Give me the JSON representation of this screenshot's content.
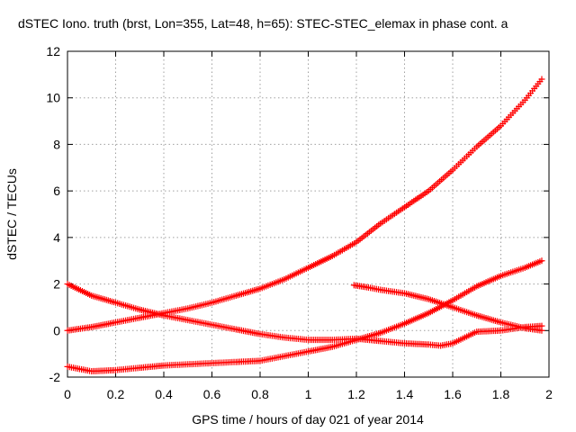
{
  "chart_data": {
    "type": "scatter",
    "title": "dSTEC Iono. truth (brst, Lon=355, Lat=48, h=65): STEC-STEC_elemax in phase cont. a",
    "xlabel": "GPS time / hours of day 021 of year 2014",
    "ylabel": "dSTEC  / TECUs",
    "xlim": [
      0,
      2
    ],
    "ylim": [
      -2,
      12
    ],
    "x_ticks": [
      "0",
      "0.2",
      "0.4",
      "0.6",
      "0.8",
      "1",
      "1.2",
      "1.4",
      "1.6",
      "1.8",
      "2"
    ],
    "y_ticks": [
      "-2",
      "0",
      "2",
      "4",
      "6",
      "8",
      "10",
      "12"
    ],
    "grid": true,
    "legend": "none",
    "marker": "+",
    "color": "#ff0000",
    "series": [
      {
        "x": [
          0.0,
          0.1,
          0.2,
          0.3,
          0.4,
          0.5,
          0.6,
          0.7,
          0.8,
          0.9,
          1.0,
          1.1,
          1.2,
          1.3,
          1.4,
          1.5,
          1.6,
          1.7,
          1.8,
          1.9,
          1.97
        ],
        "y": [
          0.0,
          0.15,
          0.35,
          0.55,
          0.75,
          0.95,
          1.2,
          1.5,
          1.8,
          2.2,
          2.7,
          3.2,
          3.8,
          4.6,
          5.3,
          6.0,
          6.9,
          7.9,
          8.8,
          9.9,
          10.8
        ]
      },
      {
        "x": [
          0.0,
          0.05,
          0.1,
          0.2,
          0.3,
          0.4,
          0.5,
          0.6,
          0.7,
          0.8,
          0.9,
          1.0,
          1.1,
          1.2,
          1.3,
          1.4,
          1.5,
          1.6,
          1.7,
          1.8,
          1.9,
          1.97
        ],
        "y": [
          -1.55,
          -1.65,
          -1.75,
          -1.7,
          -1.6,
          -1.5,
          -1.45,
          -1.4,
          -1.35,
          -1.3,
          -1.1,
          -0.9,
          -0.7,
          -0.4,
          -0.1,
          0.3,
          0.75,
          1.3,
          1.9,
          2.35,
          2.7,
          3.0
        ]
      },
      {
        "x": [
          0.0,
          0.1,
          0.2,
          0.3,
          0.4,
          0.5,
          0.6,
          0.7,
          0.8,
          0.9,
          1.0,
          1.1,
          1.2,
          1.3,
          1.4,
          1.5,
          1.55,
          1.6,
          1.7,
          1.8,
          1.9,
          1.97
        ],
        "y": [
          2.0,
          1.5,
          1.2,
          0.9,
          0.65,
          0.45,
          0.25,
          0.05,
          -0.15,
          -0.3,
          -0.4,
          -0.4,
          -0.35,
          -0.45,
          -0.55,
          -0.6,
          -0.65,
          -0.55,
          -0.05,
          0.0,
          0.15,
          0.2
        ]
      },
      {
        "x": [
          1.19,
          1.25,
          1.3,
          1.4,
          1.5,
          1.6,
          1.7,
          1.8,
          1.9,
          1.97
        ],
        "y": [
          1.95,
          1.85,
          1.75,
          1.6,
          1.35,
          1.0,
          0.65,
          0.35,
          0.1,
          0.0
        ]
      }
    ]
  }
}
